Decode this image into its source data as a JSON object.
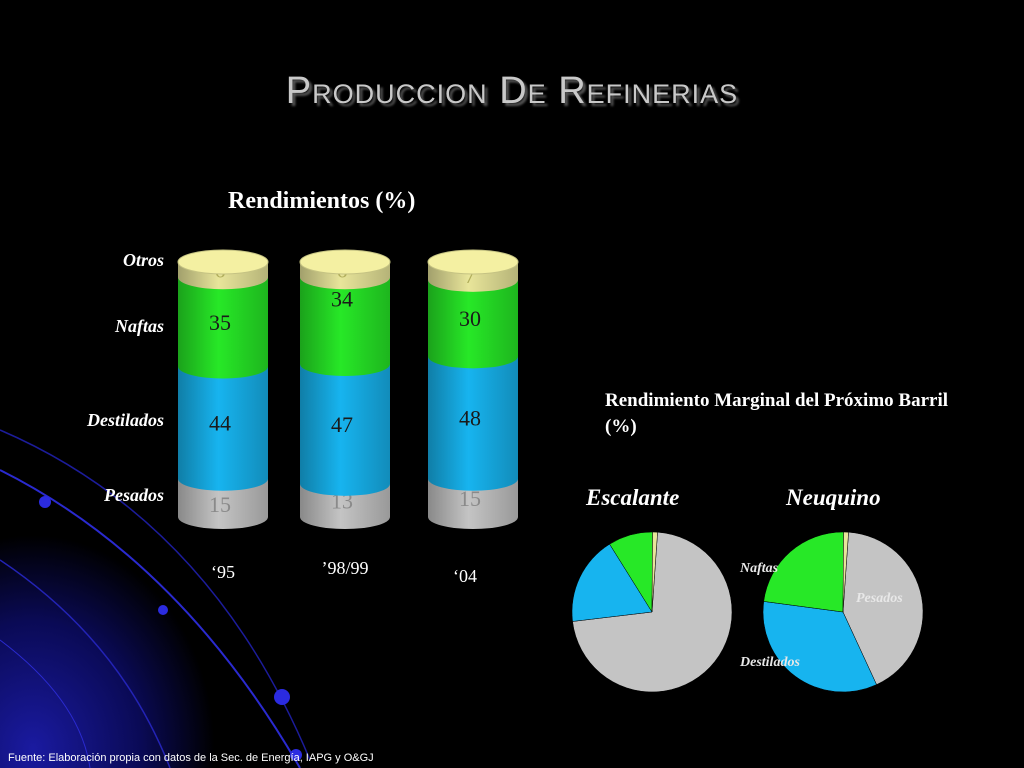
{
  "slide_title": "Produccion De Refinerias",
  "colors": {
    "Otros": "#e8e59a",
    "Naftas": "#27e827",
    "Destilados": "#17b4ef",
    "Pesados": "#c4c4c4"
  },
  "chart_data": [
    {
      "type": "bar",
      "stacked": true,
      "title": "Rendimientos (%)",
      "categories": [
        "‘95",
        "’98/99",
        "‘04"
      ],
      "series": [
        {
          "name": "Pesados",
          "values": [
            15,
            13,
            15
          ]
        },
        {
          "name": "Destilados",
          "values": [
            44,
            47,
            48
          ]
        },
        {
          "name": "Naftas",
          "values": [
            35,
            34,
            30
          ]
        },
        {
          "name": "Otros",
          "values": [
            6,
            6,
            7
          ]
        }
      ]
    },
    {
      "type": "pie",
      "title": "Rendimiento Marginal del Próximo Barril (%)",
      "pies": [
        {
          "name": "Escalante",
          "slices": [
            {
              "label": "Pesados",
              "value": 72
            },
            {
              "label": "Destilados",
              "value": 18
            },
            {
              "label": "Naftas",
              "value": 9
            },
            {
              "label": "Otros",
              "value": 1
            }
          ]
        },
        {
          "name": "Neuquino",
          "slices": [
            {
              "label": "Pesados",
              "value": 42
            },
            {
              "label": "Destilados",
              "value": 34
            },
            {
              "label": "Naftas",
              "value": 23
            },
            {
              "label": "Otros",
              "value": 1
            }
          ]
        }
      ],
      "visible_labels": {
        "Naftas": "Naftas",
        "Pesados": "Pesados",
        "Destilados": "Destilados"
      }
    }
  ],
  "source": "Fuente: Elaboración propia con datos de la Sec. de Energía, IAPG y O&GJ"
}
